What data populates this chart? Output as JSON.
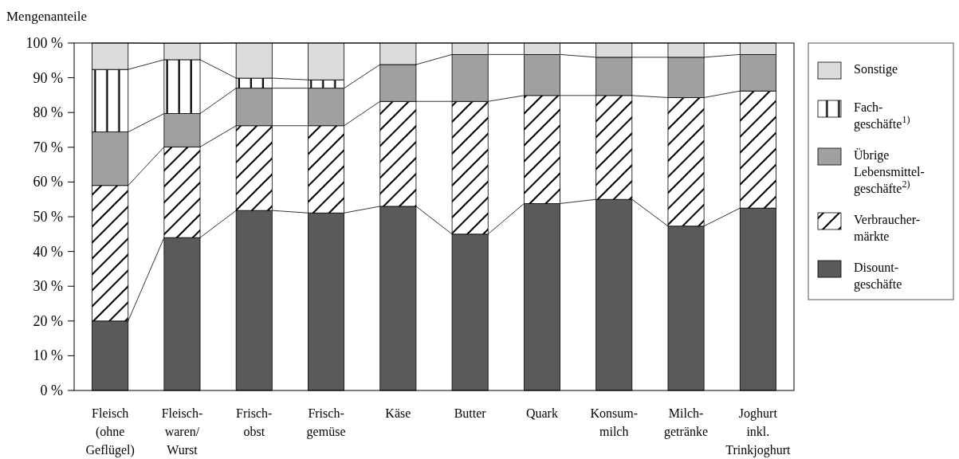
{
  "chart_data": {
    "type": "bar",
    "stacked": true,
    "ylabel": "Mengenanteile",
    "categories": [
      "Fleisch\n(ohne\nGeflügel)",
      "Fleisch-\nwaren/\nWurst",
      "Frisch-\nobst",
      "Frisch-\ngemüse",
      "Käse",
      "Butter",
      "Quark",
      "Konsum-\nmilch",
      "Milch-\ngetränke",
      "Joghurt\ninkl.\nTrinkjoghurt"
    ],
    "series": [
      {
        "name": "Disount-\ngeschäfte",
        "color": "#5a5a5a",
        "values": [
          20,
          44,
          51.8,
          51.1,
          53,
          45,
          53.8,
          55,
          47.3,
          52.5
        ]
      },
      {
        "name": "Verbraucher-\nmärkte",
        "color": "#000000",
        "values": [
          39,
          26.1,
          24.4,
          25.1,
          30.2,
          38.2,
          31.1,
          29.9,
          37,
          33.7
        ]
      },
      {
        "name": "Übrige\nLebensmittel-\ngeschäfte$^{2)}$",
        "color": "#a0a0a0",
        "values": [
          15.4,
          9.6,
          10.8,
          10.8,
          10.6,
          13.5,
          11.8,
          11,
          11.6,
          10.5
        ]
      },
      {
        "name": "Fach-\ngeschäfte$^{1)}$",
        "color": "#000000",
        "values": [
          18,
          15.5,
          2.9,
          2.4,
          0,
          0,
          0,
          0,
          0,
          0
        ]
      },
      {
        "name": "Sonstige",
        "color": "#dcdcdc",
        "values": [
          7.6,
          4.7,
          10.1,
          10.6,
          6.2,
          3.3,
          3.3,
          4.1,
          4.1,
          3.3
        ]
      }
    ],
    "ylim": [
      0,
      100
    ],
    "yticks": [
      {
        "value": 0,
        "label": "0 %"
      },
      {
        "value": 10,
        "label": "10 %"
      },
      {
        "value": 20,
        "label": "20 %"
      },
      {
        "value": 30,
        "label": "30 %"
      },
      {
        "value": 40,
        "label": "40 %"
      },
      {
        "value": 50,
        "label": "50 %"
      },
      {
        "value": 60,
        "label": "60 %"
      },
      {
        "value": 70,
        "label": "70 %"
      },
      {
        "value": 80,
        "label": "80 %"
      },
      {
        "value": 90,
        "label": "90 %"
      },
      {
        "value": 100,
        "label": "100 %"
      }
    ],
    "legend": "right",
    "grid": false
  }
}
